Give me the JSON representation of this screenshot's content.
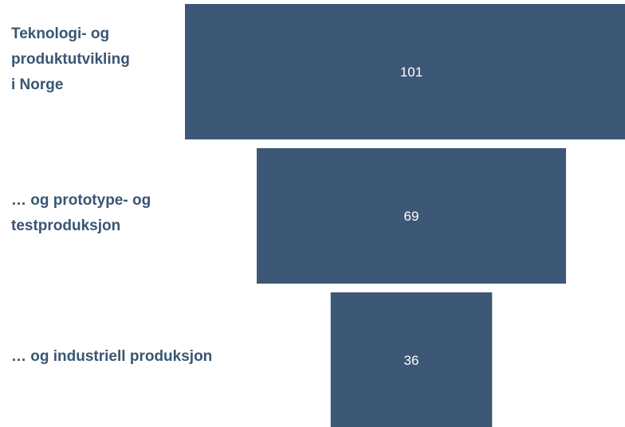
{
  "chart_data": {
    "type": "bar",
    "orientation": "funnel",
    "categories": [
      "Teknologi- og\nproduktutvikling\ni Norge",
      "… og prototype- og\ntestproduksjon",
      "… og industriell produksjon"
    ],
    "values": [
      101,
      69,
      36
    ],
    "data_labels": [
      "101",
      "69",
      "36"
    ],
    "title": "",
    "xlabel": "",
    "ylabel": "",
    "grid": false,
    "legend": "none",
    "colors": {
      "bar": "#3d5876",
      "label_text": "#3a5673",
      "value_text": "#ffffff"
    }
  }
}
